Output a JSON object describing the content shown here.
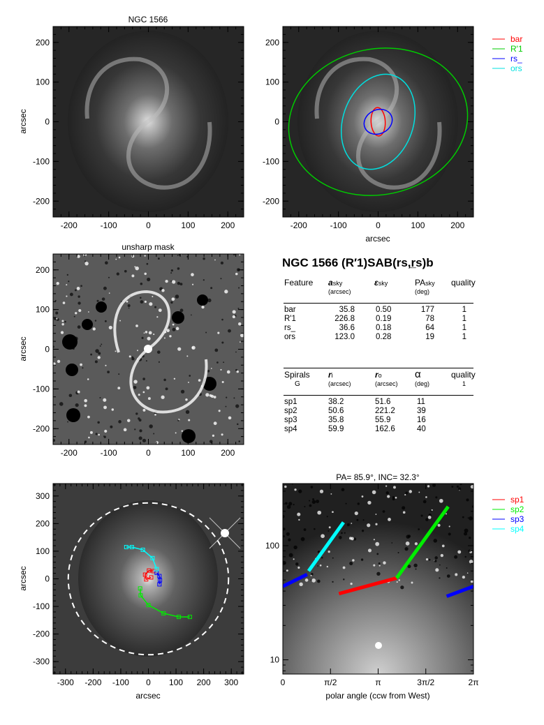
{
  "figure": {
    "object_name": "NGC 1566",
    "panel_titles": {
      "top_left": "NGC 1566",
      "mid_left": "unsharp mask"
    },
    "classification": "NGC 1566  (R′1)SAB(rs,r̲s)b",
    "units_label": "arcsec"
  },
  "colors": {
    "bar": "#ff0000",
    "R1": "#00cc00",
    "rs": "#0000ff",
    "ors": "#00e0e0",
    "sp1": "#ff0000",
    "sp2": "#00ee00",
    "sp3": "#0000ff",
    "sp4": "#00ffff",
    "ellipse_dashed": "#ffffff"
  },
  "feature_table": {
    "headers": {
      "feature": "Feature",
      "a": "a",
      "a_sub": "sky",
      "a_unit": "(arcsec)",
      "eps": "ε",
      "eps_sub": "sky",
      "pa": "PA",
      "pa_sub": "sky",
      "pa_unit": "(deg)",
      "quality": "quality"
    },
    "rows": [
      {
        "name": "bar",
        "a": "35.8",
        "eps": "0.50",
        "pa": "177",
        "q": "1"
      },
      {
        "name": "R'1",
        "a": "226.8",
        "eps": "0.19",
        "pa": "78",
        "q": "1"
      },
      {
        "name": "rs_",
        "a": "36.6",
        "eps": "0.18",
        "pa": "64",
        "q": "1"
      },
      {
        "name": "ors",
        "a": "123.0",
        "eps": "0.28",
        "pa": "19",
        "q": "1"
      }
    ]
  },
  "spiral_table": {
    "headers": {
      "spirals": "Spirals",
      "group": "G",
      "ri": "r",
      "ri_sub": "i",
      "ri_unit": "(arcsec)",
      "ro": "r",
      "ro_sub": "o",
      "ro_unit": "(arcsec)",
      "alpha": "α",
      "alpha_unit": "(deg)",
      "quality": "quality",
      "quality_val": "1"
    },
    "rows": [
      {
        "name": "sp1",
        "ri": "38.2",
        "ro": "51.6",
        "alpha": "11"
      },
      {
        "name": "sp2",
        "ri": "50.6",
        "ro": "221.2",
        "alpha": "39"
      },
      {
        "name": "sp3",
        "ri": "35.8",
        "ro": "55.9",
        "alpha": "16"
      },
      {
        "name": "sp4",
        "ri": "59.9",
        "ro": "162.6",
        "alpha": "40"
      }
    ]
  },
  "chart_data": [
    {
      "type": "image",
      "title": "NGC 1566",
      "xlabel": "",
      "ylabel": "arcsec",
      "xlim": [
        -240,
        240
      ],
      "ylim": [
        -240,
        240
      ],
      "xticks": [
        -200,
        -100,
        0,
        100,
        200
      ],
      "yticks": [
        -200,
        -100,
        0,
        100,
        200
      ]
    },
    {
      "type": "image",
      "title": "",
      "xlabel": "arcsec",
      "ylabel": "",
      "xlim": [
        -240,
        240
      ],
      "ylim": [
        -240,
        240
      ],
      "xticks": [
        -200,
        -100,
        0,
        100,
        200
      ],
      "yticks": [
        -200,
        -100,
        0,
        100,
        200
      ],
      "legend": [
        "bar",
        "R'1",
        "rs_",
        "ors"
      ],
      "legend_position": "right",
      "ellipses": [
        {
          "name": "bar",
          "a": 35.8,
          "eps": 0.5,
          "pa": 177
        },
        {
          "name": "R'1",
          "a": 226.8,
          "eps": 0.19,
          "pa": 78
        },
        {
          "name": "rs_",
          "a": 36.6,
          "eps": 0.18,
          "pa": 64
        },
        {
          "name": "ors",
          "a": 123.0,
          "eps": 0.28,
          "pa": 19
        }
      ]
    },
    {
      "type": "image",
      "title": "unsharp mask",
      "xlabel": "",
      "ylabel": "arcsec",
      "xlim": [
        -240,
        240
      ],
      "ylim": [
        -240,
        240
      ],
      "xticks": [
        -200,
        -100,
        0,
        100,
        200
      ],
      "yticks": [
        -200,
        -100,
        0,
        100,
        200
      ]
    },
    {
      "type": "image",
      "title": "",
      "xlabel": "arcsec",
      "ylabel": "arcsec",
      "xlim": [
        -345,
        345
      ],
      "ylim": [
        -345,
        345
      ],
      "xticks": [
        -300,
        -200,
        -100,
        0,
        100,
        200,
        300
      ],
      "yticks": [
        -300,
        -200,
        -100,
        0,
        100,
        200,
        300
      ],
      "arms": [
        {
          "name": "sp1",
          "points": [
            [
              10,
              5
            ],
            [
              -8,
              -2
            ],
            [
              -12,
              15
            ],
            [
              2,
              30
            ],
            [
              18,
              28
            ]
          ]
        },
        {
          "name": "sp2",
          "points": [
            [
              -30,
              -35
            ],
            [
              -28,
              -60
            ],
            [
              0,
              -95
            ],
            [
              55,
              -125
            ],
            [
              110,
              -138
            ],
            [
              150,
              -138
            ]
          ]
        },
        {
          "name": "sp3",
          "points": [
            [
              40,
              -20
            ],
            [
              42,
              -5
            ],
            [
              40,
              10
            ],
            [
              30,
              22
            ]
          ]
        },
        {
          "name": "sp4",
          "points": [
            [
              30,
              35
            ],
            [
              15,
              75
            ],
            [
              -20,
              105
            ],
            [
              -60,
              115
            ],
            [
              -80,
              115
            ]
          ]
        }
      ],
      "dashed_ellipse": {
        "a": 290,
        "b": 275,
        "pa": 0
      }
    },
    {
      "type": "line",
      "title": "PA= 85.9°, INC= 32.3°",
      "xlabel": "polar angle (ccw from West)",
      "ylabel": "",
      "xlim": [
        0,
        6.2832
      ],
      "ylim": [
        7.5,
        350
      ],
      "yscale": "log",
      "xticks": [
        0,
        1.5708,
        3.1416,
        4.7124,
        6.2832
      ],
      "xticklabels": [
        "0",
        "π/2",
        "π",
        "3π/2",
        "2π"
      ],
      "yticks": [
        10,
        100
      ],
      "yticklabels": [
        "10",
        "100"
      ],
      "legend": [
        "sp1",
        "sp2",
        "sp3",
        "sp4"
      ],
      "legend_position": "right",
      "series": [
        {
          "name": "sp1",
          "x": [
            1.85,
            3.75
          ],
          "y": [
            38,
            52
          ]
        },
        {
          "name": "sp2",
          "x": [
            3.75,
            5.45
          ],
          "y": [
            52,
            220
          ]
        },
        {
          "name": "sp3",
          "x": [
            0.0,
            0.8,
            5.4,
            6.2832
          ],
          "y": [
            44,
            56,
            36,
            44
          ]
        },
        {
          "name": "sp4",
          "x": [
            0.85,
            2.0
          ],
          "y": [
            60,
            160
          ]
        }
      ]
    }
  ]
}
